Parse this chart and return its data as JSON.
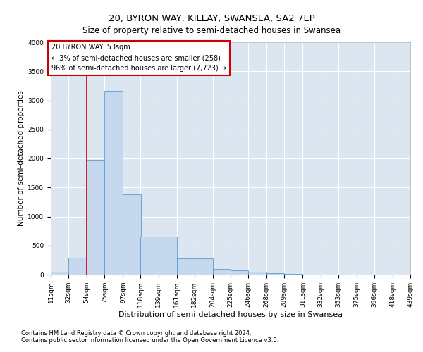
{
  "title": "20, BYRON WAY, KILLAY, SWANSEA, SA2 7EP",
  "subtitle": "Size of property relative to semi-detached houses in Swansea",
  "xlabel": "Distribution of semi-detached houses by size in Swansea",
  "ylabel": "Number of semi-detached properties",
  "footnote1": "Contains HM Land Registry data © Crown copyright and database right 2024.",
  "footnote2": "Contains public sector information licensed under the Open Government Licence v3.0.",
  "annotation_title": "20 BYRON WAY: 53sqm",
  "annotation_line1": "← 3% of semi-detached houses are smaller (258)",
  "annotation_line2": "96% of semi-detached houses are larger (7,723) →",
  "bin_edges": [
    11,
    32,
    54,
    75,
    97,
    118,
    139,
    161,
    182,
    204,
    225,
    246,
    268,
    289,
    311,
    332,
    353,
    375,
    396,
    418,
    439
  ],
  "bin_counts": [
    50,
    290,
    1980,
    3160,
    1380,
    650,
    650,
    280,
    280,
    100,
    70,
    50,
    30,
    10,
    5,
    3,
    2,
    2,
    2,
    1
  ],
  "bar_color": "#c5d8ee",
  "bar_edge_color": "#5b9bd5",
  "vline_color": "#cc0000",
  "vline_x": 54,
  "annotation_box_color": "#ffffff",
  "annotation_box_edge": "#cc0000",
  "ylim": [
    0,
    4000
  ],
  "yticks": [
    0,
    500,
    1000,
    1500,
    2000,
    2500,
    3000,
    3500,
    4000
  ],
  "background_color": "#dce6f1",
  "title_fontsize": 9.5,
  "subtitle_fontsize": 8.5,
  "xlabel_fontsize": 8,
  "ylabel_fontsize": 7.5,
  "tick_fontsize": 6.5,
  "annotation_fontsize": 7,
  "footnote_fontsize": 6
}
